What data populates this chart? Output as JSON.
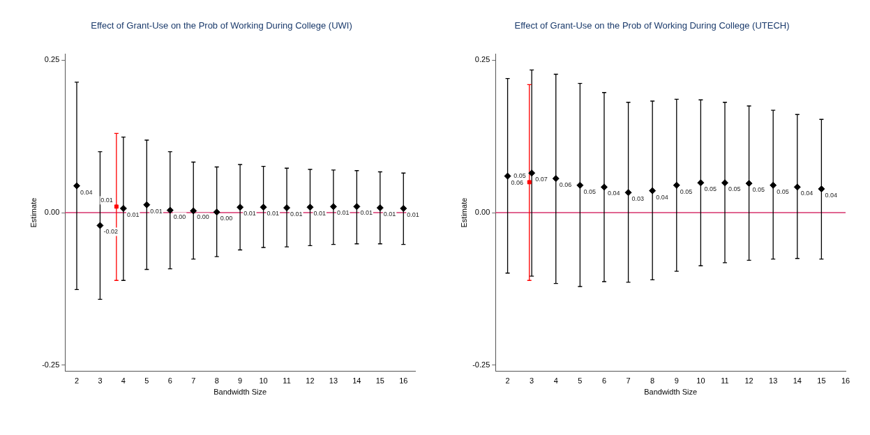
{
  "chart_data": [
    {
      "type": "scatter",
      "title": "Effect of Grant-Use on the Prob of Working During College (UWI)",
      "xlabel": "Bandwidth Size",
      "ylabel": "Estimate",
      "xlim": [
        1.5,
        16.5
      ],
      "xticks": [
        2,
        3,
        4,
        5,
        6,
        7,
        8,
        9,
        10,
        11,
        12,
        13,
        14,
        15,
        16
      ],
      "ylim": [
        -0.26,
        0.26
      ],
      "yticks": [
        {
          "value": -0.25,
          "label": "-0.25"
        },
        {
          "value": 0,
          "label": "0.00"
        },
        {
          "value": 0.25,
          "label": "0.25"
        }
      ],
      "grid": false,
      "legend": false,
      "ref_lines": [
        {
          "axis": "y",
          "value": 0,
          "color": "#d6336c"
        }
      ],
      "series": [
        {
          "color": "#000000",
          "marker": "diamond",
          "x": [
            2,
            3,
            4,
            5,
            6,
            7,
            8,
            9,
            10,
            11,
            12,
            13,
            14,
            15,
            16
          ],
          "values": [
            0.044,
            -0.021,
            0.007,
            0.013,
            0.004,
            0.003,
            0.001,
            0.009,
            0.009,
            0.008,
            0.009,
            0.01,
            0.01,
            0.008,
            0.007
          ],
          "errors": [
            [
              -0.126,
              0.214
            ],
            [
              -0.142,
              0.1
            ],
            [
              -0.111,
              0.124
            ],
            [
              -0.093,
              0.119
            ],
            [
              -0.092,
              0.1
            ],
            [
              -0.076,
              0.083
            ],
            [
              -0.072,
              0.075
            ],
            [
              -0.061,
              0.079
            ],
            [
              -0.057,
              0.076
            ],
            [
              -0.056,
              0.073
            ],
            [
              -0.054,
              0.071
            ],
            [
              -0.052,
              0.07
            ],
            [
              -0.051,
              0.069
            ],
            [
              -0.051,
              0.067
            ],
            [
              -0.052,
              0.065
            ]
          ],
          "value_labels": [
            "0.04",
            "-0.02",
            "0.01",
            "0.01",
            "0.00",
            "0.00",
            "0.00",
            "0.01",
            "0.01",
            "0.01",
            "0.01",
            "0.01",
            "0.01",
            "0.01",
            "0.01"
          ]
        },
        {
          "color": "#ff0000",
          "marker": "square",
          "x": [
            3.7
          ],
          "values": [
            0.01
          ],
          "errors": [
            [
              -0.111,
              0.13
            ]
          ],
          "value_labels": [
            "0.01"
          ]
        }
      ]
    },
    {
      "type": "scatter",
      "title": "Effect of Grant-Use on the Prob of Working During College (UTECH)",
      "xlabel": "Bandwidth Size",
      "ylabel": "Estimate",
      "xlim": [
        1.5,
        16
      ],
      "xticks": [
        2,
        3,
        4,
        5,
        6,
        7,
        8,
        9,
        10,
        11,
        12,
        13,
        14,
        15,
        16
      ],
      "ylim": [
        -0.26,
        0.26
      ],
      "yticks": [
        {
          "value": -0.25,
          "label": "-0.25"
        },
        {
          "value": 0,
          "label": "0.00"
        },
        {
          "value": 0.25,
          "label": "0.25"
        }
      ],
      "grid": false,
      "legend": false,
      "ref_lines": [
        {
          "axis": "y",
          "value": 0,
          "color": "#d6336c"
        }
      ],
      "series": [
        {
          "color": "#000000",
          "marker": "diamond",
          "x": [
            2,
            3,
            4,
            5,
            6,
            7,
            8,
            9,
            10,
            11,
            12,
            13,
            14,
            15
          ],
          "values": [
            0.06,
            0.065,
            0.056,
            0.045,
            0.042,
            0.033,
            0.036,
            0.045,
            0.049,
            0.049,
            0.048,
            0.045,
            0.042,
            0.039
          ],
          "errors": [
            [
              -0.099,
              0.22
            ],
            [
              -0.104,
              0.234
            ],
            [
              -0.116,
              0.227
            ],
            [
              -0.121,
              0.212
            ],
            [
              -0.113,
              0.197
            ],
            [
              -0.114,
              0.181
            ],
            [
              -0.11,
              0.183
            ],
            [
              -0.096,
              0.186
            ],
            [
              -0.087,
              0.185
            ],
            [
              -0.082,
              0.181
            ],
            [
              -0.078,
              0.175
            ],
            [
              -0.076,
              0.168
            ],
            [
              -0.075,
              0.161
            ],
            [
              -0.076,
              0.153
            ]
          ],
          "value_labels": [
            "0.06",
            "0.07",
            "0.06",
            "0.05",
            "0.04",
            "0.03",
            "0.04",
            "0.05",
            "0.05",
            "0.05",
            "0.05",
            "0.05",
            "0.04",
            "0.04"
          ]
        },
        {
          "color": "#ff0000",
          "marker": "square",
          "x": [
            2.9
          ],
          "values": [
            0.05
          ],
          "errors": [
            [
              -0.111,
              0.21
            ]
          ],
          "value_labels": [
            "0.05"
          ]
        }
      ]
    }
  ]
}
